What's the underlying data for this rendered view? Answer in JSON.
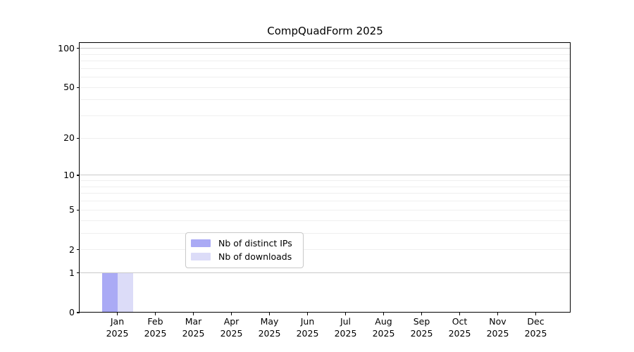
{
  "chart_data": {
    "type": "bar",
    "title": "CompQuadForm 2025",
    "categories": [
      "Jan",
      "Feb",
      "Mar",
      "Apr",
      "May",
      "Jun",
      "Jul",
      "Aug",
      "Sep",
      "Oct",
      "Nov",
      "Dec"
    ],
    "category_year": "2025",
    "series": [
      {
        "name": "Nb of distinct IPs",
        "color": "#aaaaf5",
        "values": [
          1,
          0,
          0,
          0,
          0,
          0,
          0,
          0,
          0,
          0,
          0,
          0
        ]
      },
      {
        "name": "Nb of downloads",
        "color": "#dcdcf8",
        "values": [
          1,
          0,
          0,
          0,
          0,
          0,
          0,
          0,
          0,
          0,
          0,
          0
        ]
      }
    ],
    "yscale": "log1p",
    "ylim": [
      0,
      110
    ],
    "ytick_labels": [
      0,
      1,
      2,
      5,
      10,
      20,
      50,
      100
    ],
    "gridlines_major": [
      1,
      10,
      100
    ],
    "gridlines_minor": [
      2,
      3,
      4,
      5,
      6,
      7,
      8,
      9,
      20,
      30,
      40,
      50,
      60,
      70,
      80,
      90
    ],
    "grid": true,
    "legend_position": "bottom-center"
  },
  "legend": {
    "items": [
      {
        "label": "Nb of distinct IPs",
        "color": "#aaaaf5"
      },
      {
        "label": "Nb of downloads",
        "color": "#dcdcf8"
      }
    ]
  },
  "colors": {
    "bar_distinct_ips": "#aaaaf5",
    "bar_downloads": "#dcdcf8",
    "grid_major": "#c9c9c9",
    "grid_minor": "#efefef",
    "axis": "#000000",
    "legend_border": "#c8c8c8",
    "background": "#ffffff"
  }
}
